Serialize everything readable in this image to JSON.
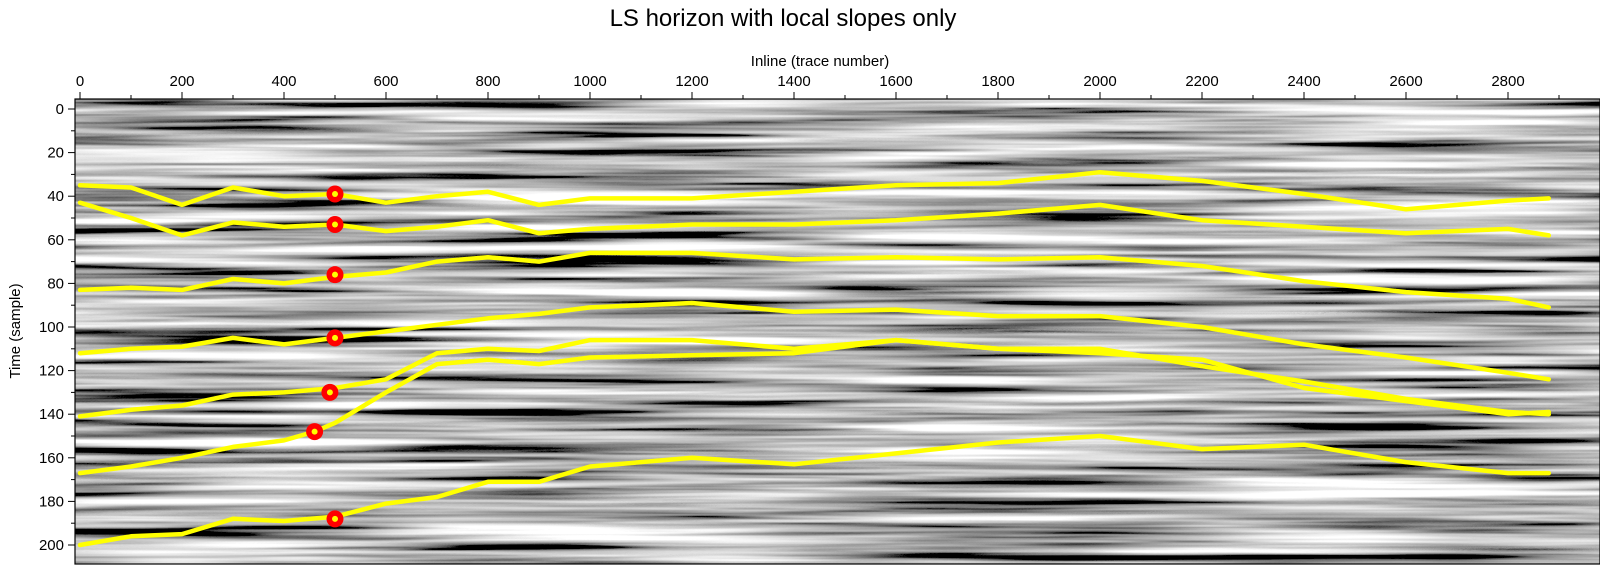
{
  "chart_data": {
    "type": "line",
    "title": "LS horizon with local slopes only",
    "xlabel": "Inline (trace number)",
    "ylabel": "Time (sample)",
    "x_axis_position": "top",
    "y_axis_inverted": true,
    "xlim": [
      0,
      2880
    ],
    "ylim": [
      0,
      210
    ],
    "xticks": [
      0,
      200,
      400,
      600,
      800,
      1000,
      1200,
      1400,
      1600,
      1800,
      2000,
      2200,
      2400,
      2600,
      2800
    ],
    "yticks": [
      0,
      20,
      40,
      60,
      80,
      100,
      120,
      140,
      160,
      180,
      200
    ],
    "background": "grayscale seismic section",
    "colors": {
      "horizon": "#ffff00",
      "control_point": "#ff0000",
      "control_point_center": "#ffff00"
    },
    "series": [
      {
        "x": [
          0,
          100,
          200,
          300,
          400,
          500,
          600,
          700,
          800,
          900,
          1000,
          1200,
          1400,
          1600,
          1800,
          2000,
          2200,
          2400,
          2600,
          2800,
          2880
        ],
        "y": [
          35,
          36,
          44,
          36,
          40,
          39,
          43,
          40,
          38,
          44,
          41,
          41,
          38,
          35,
          34,
          29,
          33,
          39,
          46,
          42,
          41
        ]
      },
      {
        "x": [
          0,
          100,
          200,
          300,
          400,
          500,
          600,
          700,
          800,
          900,
          1000,
          1200,
          1400,
          1600,
          1800,
          2000,
          2200,
          2400,
          2600,
          2800,
          2880
        ],
        "y": [
          43,
          50,
          58,
          52,
          54,
          53,
          56,
          54,
          51,
          57,
          55,
          53,
          53,
          51,
          48,
          44,
          51,
          54,
          57,
          55,
          58
        ]
      },
      {
        "x": [
          0,
          100,
          200,
          300,
          400,
          500,
          600,
          700,
          800,
          900,
          1000,
          1200,
          1400,
          1600,
          1800,
          2000,
          2200,
          2400,
          2600,
          2800,
          2880
        ],
        "y": [
          83,
          82,
          83,
          78,
          80,
          77,
          75,
          70,
          68,
          70,
          66,
          66,
          69,
          68,
          69,
          68,
          72,
          79,
          84,
          87,
          91
        ]
      },
      {
        "x": [
          0,
          100,
          200,
          300,
          400,
          500,
          600,
          700,
          800,
          900,
          1000,
          1200,
          1400,
          1600,
          1800,
          2000,
          2200,
          2400,
          2600,
          2800,
          2880
        ],
        "y": [
          112,
          110,
          109,
          105,
          108,
          105,
          102,
          99,
          96,
          94,
          91,
          89,
          93,
          92,
          95,
          95,
          100,
          108,
          114,
          121,
          124
        ]
      },
      {
        "x": [
          0,
          100,
          200,
          300,
          400,
          500,
          600,
          700,
          800,
          900,
          1000,
          1200,
          1400,
          1600,
          1800,
          2000,
          2200,
          2400,
          2600,
          2800,
          2880
        ],
        "y": [
          141,
          138,
          136,
          131,
          130,
          128,
          124,
          112,
          110,
          111,
          106,
          106,
          110,
          106,
          110,
          110,
          118,
          125,
          133,
          139,
          140
        ]
      },
      {
        "x": [
          0,
          100,
          200,
          300,
          400,
          460,
          500,
          600,
          700,
          800,
          900,
          1000,
          1200,
          1400,
          1600,
          1800,
          2000,
          2200,
          2400,
          2600,
          2800,
          2880
        ],
        "y": [
          167,
          164,
          160,
          155,
          152,
          148,
          144,
          130,
          117,
          115,
          117,
          114,
          113,
          112,
          106,
          110,
          112,
          115,
          128,
          134,
          140,
          139
        ]
      },
      {
        "x": [
          0,
          100,
          200,
          300,
          400,
          500,
          600,
          700,
          800,
          900,
          1000,
          1200,
          1400,
          1600,
          1800,
          2000,
          2200,
          2400,
          2600,
          2800,
          2880
        ],
        "y": [
          200,
          196,
          195,
          188,
          189,
          187,
          181,
          178,
          171,
          171,
          164,
          160,
          163,
          158,
          153,
          150,
          156,
          154,
          162,
          167,
          167
        ]
      }
    ],
    "control_points": [
      {
        "x": 500,
        "y": 39
      },
      {
        "x": 500,
        "y": 53
      },
      {
        "x": 500,
        "y": 76
      },
      {
        "x": 500,
        "y": 105
      },
      {
        "x": 490,
        "y": 130
      },
      {
        "x": 460,
        "y": 148
      },
      {
        "x": 500,
        "y": 188
      }
    ]
  }
}
